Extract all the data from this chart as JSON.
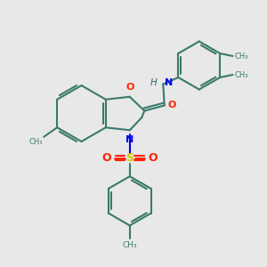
{
  "bg_color": "#e8e8e8",
  "bond_color": "#3a7a6a",
  "atom_colors": {
    "O": "#ff2200",
    "N": "#0000ee",
    "S": "#cccc00",
    "H": "#336677",
    "C": "#3a7a6a"
  },
  "figsize": [
    3.0,
    3.0
  ],
  "dpi": 100,
  "xlim": [
    0,
    10
  ],
  "ylim": [
    0,
    10
  ]
}
